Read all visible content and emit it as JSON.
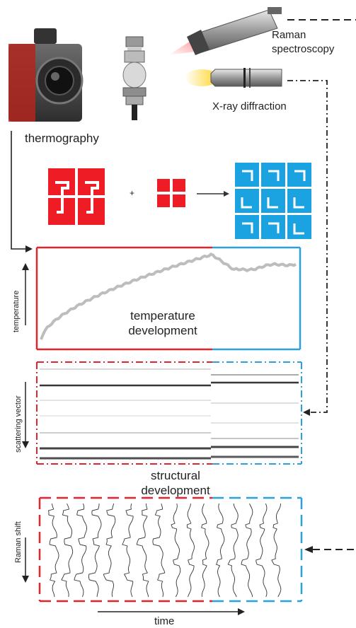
{
  "instruments": {
    "raman_label": "Raman\nspectroscopy",
    "xrd_label": "X-ray diffraction",
    "thermo_label": "thermography"
  },
  "panels": {
    "temperature": {
      "axis_label": "temperature",
      "caption": "temperature\ndevelopment"
    },
    "diffraction": {
      "axis_label": "scattering vector",
      "caption": "structural\ndevelopment"
    },
    "raman": {
      "axis_label": "Raman shift"
    }
  },
  "time_axis": {
    "label": "time"
  },
  "reaction": {
    "plus": "+"
  },
  "colors": {
    "reactant_red": "#ee1c24",
    "product_blue": "#1aa3e0",
    "curve_gray": "#bdbdbd",
    "border_red": "#e3252b",
    "border_blue": "#2aa0dc"
  }
}
